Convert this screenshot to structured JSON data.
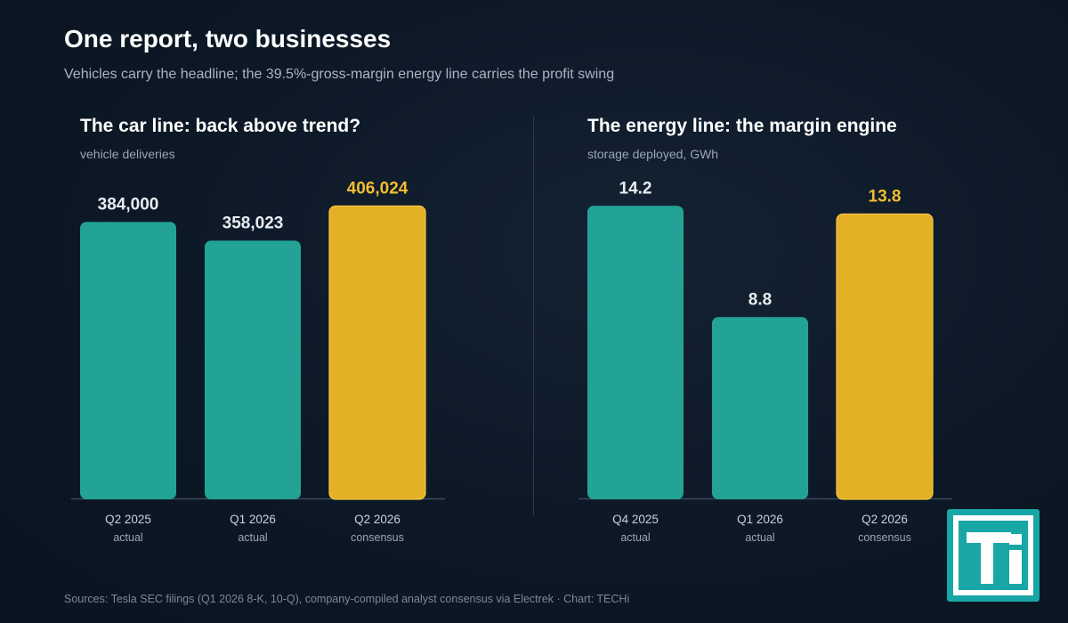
{
  "header": {
    "title": "One report, two businesses",
    "subtitle": "Vehicles carry the headline; the 39.5%-gross-margin energy line carries the profit swing"
  },
  "colors": {
    "actual": "#22a396",
    "consensus": "#e3b026",
    "consensus_label": "#f2bd2e",
    "value_label": "#e9edf2",
    "axis": "#3a4a5c",
    "tick": "#c9d1dc",
    "tick_sub": "#9aa6b6"
  },
  "chart_data": [
    {
      "type": "bar",
      "title": "The car line: back above trend?",
      "ylabel": "vehicle deliveries",
      "categories": [
        "Q2 2025",
        "Q1 2026",
        "Q2 2026"
      ],
      "category_notes": [
        "actual",
        "actual",
        "consensus"
      ],
      "values": [
        384000,
        358023,
        406024
      ],
      "value_labels": [
        "384,000",
        "358,023",
        "406,024"
      ],
      "ylim": [
        0,
        445000
      ],
      "grid": false
    },
    {
      "type": "bar",
      "title": "The energy line: the margin engine",
      "ylabel": "storage deployed, GWh",
      "categories": [
        "Q4 2025",
        "Q1 2026",
        "Q2 2026"
      ],
      "category_notes": [
        "actual",
        "actual",
        "consensus"
      ],
      "values": [
        14.2,
        8.8,
        13.8
      ],
      "value_labels": [
        "14.2",
        "8.8",
        "13.8"
      ],
      "ylim": [
        0,
        15.55
      ],
      "grid": false
    }
  ],
  "footer": {
    "sources": "Sources: Tesla SEC filings (Q1 2026 8-K, 10-Q), company-compiled analyst consensus via Electrek · Chart: TECHi"
  },
  "logo": {
    "icon": "techi-logo-icon",
    "text": "Ti"
  }
}
